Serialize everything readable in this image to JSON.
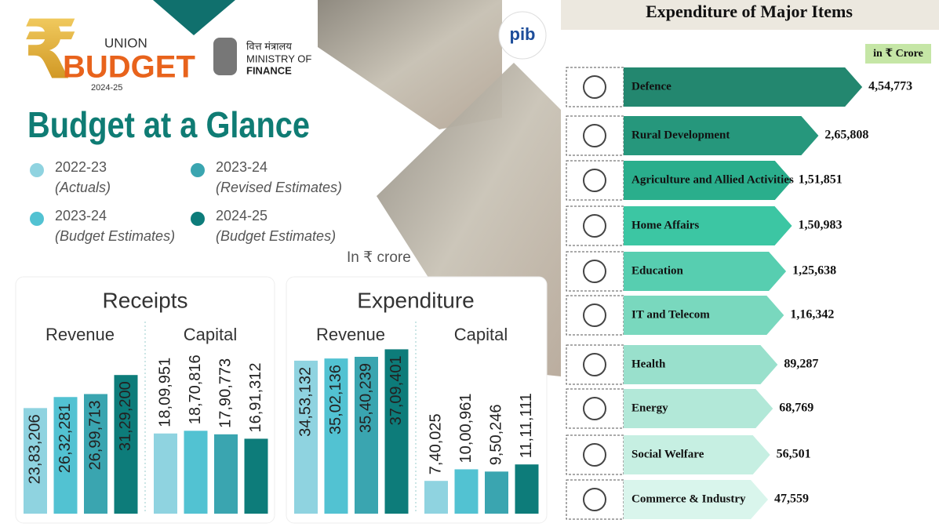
{
  "header": {
    "union": "UNION",
    "budget": "BUDGET",
    "year": "2024-25",
    "ministry_hindi": "वित्त मंत्रालय",
    "ministry_1": "MINISTRY OF",
    "ministry_2": "FINANCE",
    "pib": "pib"
  },
  "title": "Budget at a Glance",
  "legend": [
    {
      "name": "2022-23",
      "note": "(Actuals)",
      "color": "#8fd3e0"
    },
    {
      "name": "2023-24",
      "note": "(Budget Estimates)",
      "color": "#52c2d2"
    },
    {
      "name": "2023-24",
      "note": "(Revised Estimates)",
      "color": "#3aa5b0"
    },
    {
      "name": "2024-25",
      "note": "(Budget Estimates)",
      "color": "#0d7c7a"
    }
  ],
  "unit_note": "In ₹ crore",
  "chart_data": [
    {
      "type": "bar",
      "title": "Receipts",
      "categories": [
        "Revenue",
        "Capital"
      ],
      "series": [
        {
          "values": [
            2383206,
            1809951
          ],
          "value_labels": [
            "23,83,206",
            "18,09,951"
          ]
        },
        {
          "values": [
            2632281,
            1870816
          ],
          "value_labels": [
            "26,32,281",
            "18,70,816"
          ]
        },
        {
          "values": [
            2699713,
            1790773
          ],
          "value_labels": [
            "26,99,713",
            "17,90,773"
          ]
        },
        {
          "values": [
            3129200,
            1691312
          ],
          "value_labels": [
            "31,29,200",
            "16,91,312"
          ]
        }
      ]
    },
    {
      "type": "bar",
      "title": "Expenditure",
      "categories": [
        "Revenue",
        "Capital"
      ],
      "series": [
        {
          "values": [
            3453132,
            740025
          ],
          "value_labels": [
            "34,53,132",
            "7,40,025"
          ]
        },
        {
          "values": [
            3502136,
            1000961
          ],
          "value_labels": [
            "35,02,136",
            "10,00,961"
          ]
        },
        {
          "values": [
            3540239,
            950246
          ],
          "value_labels": [
            "35,40,239",
            "9,50,246"
          ]
        },
        {
          "values": [
            3709401,
            1111111
          ],
          "value_labels": [
            "37,09,401",
            "11,11,111"
          ]
        }
      ]
    },
    {
      "type": "arrow",
      "title": "Expenditure of Major Items",
      "note": "in ₹ Crore",
      "categories": [
        "Defence",
        "Rural Development",
        "Agriculture and Allied Activities",
        "Home Affairs",
        "Education",
        "IT and Telecom",
        "Health",
        "Energy",
        "Social Welfare",
        "Commerce & Industry"
      ],
      "values": [
        454773,
        265808,
        151851,
        150983,
        125638,
        116342,
        89287,
        68769,
        56501,
        47559
      ],
      "value_labels": [
        "4,54,773",
        "2,65,808",
        "1,51,851",
        "1,50,983",
        "1,25,638",
        "1,16,342",
        "89,287",
        "68,769",
        "56,501",
        "47,559"
      ],
      "colors": [
        "#23876f",
        "#26977c",
        "#2aae8c",
        "#3cc6a3",
        "#57ceb0",
        "#79d8be",
        "#99e0cc",
        "#b2e8d8",
        "#c6efe2",
        "#d9f5ec"
      ]
    }
  ]
}
